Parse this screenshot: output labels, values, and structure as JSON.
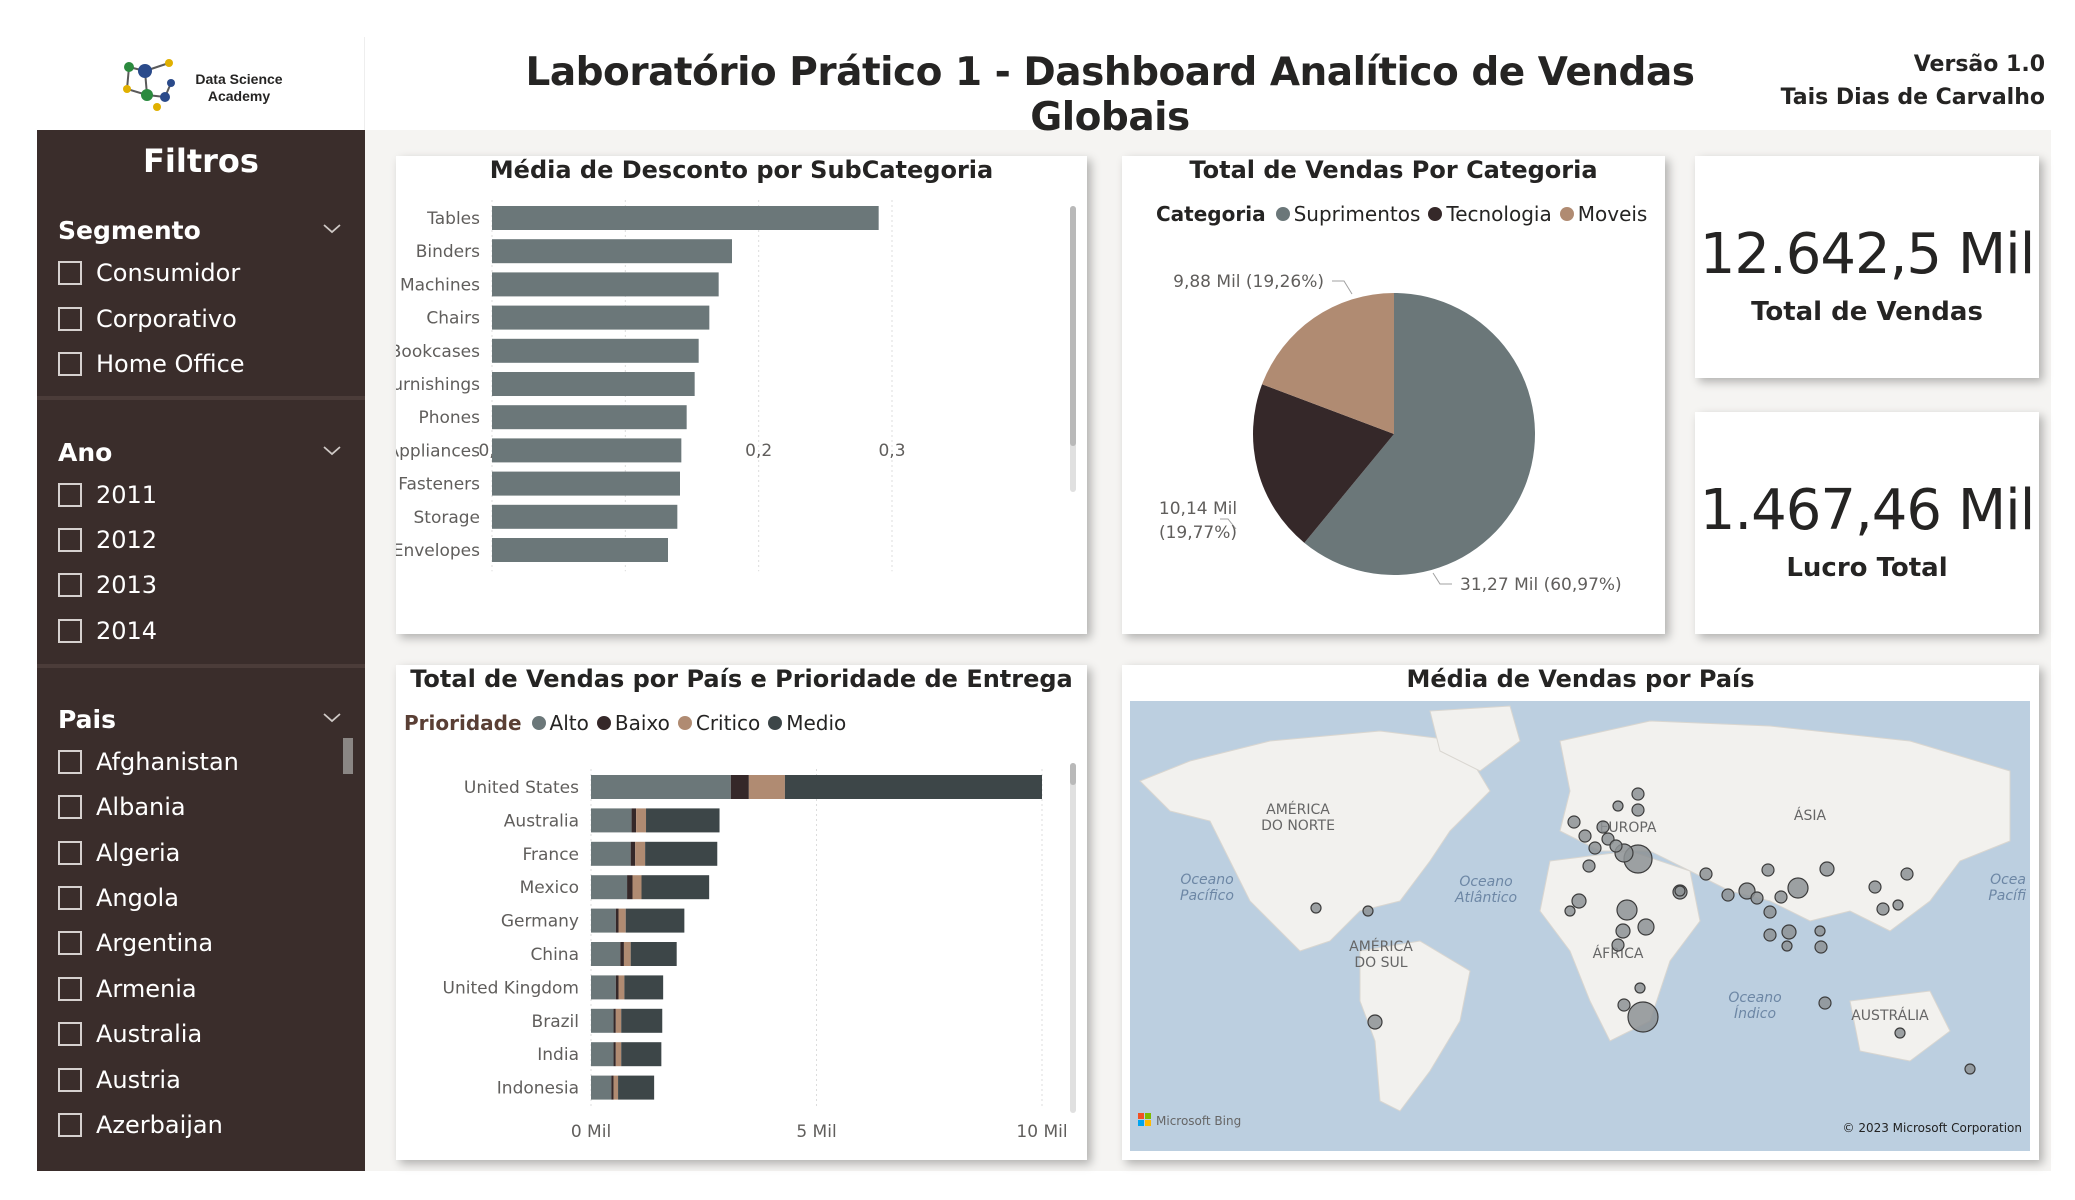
{
  "header": {
    "logo_text_line1": "Data Science",
    "logo_text_line2": "Academy",
    "title": "Laboratório Prático 1 - Dashboard Analítico de Vendas Globais",
    "version": "Versão 1.0",
    "author": "Tais Dias de Carvalho"
  },
  "sidebar": {
    "title": "Filtros",
    "groups": [
      {
        "title": "Segmento",
        "items": [
          "Consumidor",
          "Corporativo",
          "Home Office"
        ]
      },
      {
        "title": "Ano",
        "items": [
          "2011",
          "2012",
          "2013",
          "2014"
        ]
      },
      {
        "title": "Pais",
        "items": [
          "Afghanistan",
          "Albania",
          "Algeria",
          "Angola",
          "Argentina",
          "Armenia",
          "Australia",
          "Austria",
          "Azerbaijan"
        ]
      }
    ]
  },
  "colors": {
    "sidebar_bg": "#3a2d2b",
    "suprimentos": "#6b7779",
    "tecnologia": "#352829",
    "moveis": "#b08b72",
    "alto": "#6b7779",
    "baixo": "#352829",
    "critico": "#b08b72",
    "medio": "#3d4648",
    "map_water": "#bccfe0",
    "map_land": "#f2f1ee"
  },
  "kpis": [
    {
      "value": "12.642,5 Mil",
      "label": "Total de Vendas"
    },
    {
      "value": "1.467,46 Mil",
      "label": "Lucro Total"
    }
  ],
  "chart_data": [
    {
      "type": "bar",
      "orientation": "horizontal",
      "title": "Média de Desconto por SubCategoria",
      "categories": [
        "Tables",
        "Binders",
        "Machines",
        "Chairs",
        "Bookcases",
        "Furnishings",
        "Phones",
        "Appliances",
        "Fasteners",
        "Storage",
        "Envelopes"
      ],
      "values": [
        0.29,
        0.18,
        0.17,
        0.163,
        0.155,
        0.152,
        0.146,
        0.142,
        0.141,
        0.139,
        0.132
      ],
      "xlim": [
        0,
        0.3
      ],
      "xticks": [
        "0,0",
        "0,1",
        "0,2",
        "0,3"
      ],
      "xtick_values": [
        0,
        0.1,
        0.2,
        0.3
      ]
    },
    {
      "type": "pie",
      "title": "Total de Vendas Por Categoria",
      "legend_title": "Categoria",
      "categories": [
        "Suprimentos",
        "Tecnologia",
        "Moveis"
      ],
      "values": [
        31.27,
        10.14,
        9.88
      ],
      "percents": [
        60.97,
        19.77,
        19.26
      ],
      "labels": [
        "31,27 Mil (60,97%)",
        "10,14 Mil",
        "(19,77%)",
        "9,88 Mil (19,26%)"
      ]
    },
    {
      "type": "bar",
      "orientation": "horizontal",
      "stacked": true,
      "title": "Total de Vendas por País e Prioridade de Entrega",
      "legend_title": "Prioridade",
      "categories": [
        "United States",
        "Australia",
        "France",
        "Mexico",
        "Germany",
        "China",
        "United Kingdom",
        "Brazil",
        "India",
        "Indonesia"
      ],
      "series": [
        {
          "name": "Alto",
          "values": [
            3.1,
            0.9,
            0.88,
            0.8,
            0.55,
            0.65,
            0.55,
            0.5,
            0.5,
            0.45
          ]
        },
        {
          "name": "Baixo",
          "values": [
            0.4,
            0.1,
            0.1,
            0.12,
            0.06,
            0.08,
            0.06,
            0.05,
            0.05,
            0.05
          ]
        },
        {
          "name": "Critico",
          "values": [
            0.8,
            0.22,
            0.22,
            0.2,
            0.16,
            0.15,
            0.13,
            0.12,
            0.12,
            0.1
          ]
        },
        {
          "name": "Medio",
          "values": [
            5.7,
            1.63,
            1.6,
            1.5,
            1.3,
            1.02,
            0.86,
            0.91,
            0.89,
            0.8
          ]
        }
      ],
      "xlim": [
        0,
        10
      ],
      "xticks": [
        "0 Mil",
        "5 Mil",
        "10 Mil"
      ],
      "xtick_values": [
        0,
        5,
        10
      ]
    }
  ],
  "map": {
    "title": "Média de Vendas por País",
    "labels": {
      "north_america": [
        "AMÉRICA",
        "DO NORTE"
      ],
      "south_america": [
        "AMÉRICA",
        "DO SUL"
      ],
      "europe": "EUROPA",
      "asia": "ÁSIA",
      "africa": "ÁFRICA",
      "australia": "AUSTRÁLIA",
      "pacific": [
        "Oceano",
        "Pacífico"
      ],
      "atlantic": [
        "Oceano",
        "Atlântico"
      ],
      "indian": [
        "Oceano",
        "Índico"
      ],
      "pacific_right": [
        "Ocea",
        "Pacífi"
      ]
    },
    "attribution_left": "Microsoft Bing",
    "attribution_right": "© 2023 Microsoft Corporation"
  }
}
